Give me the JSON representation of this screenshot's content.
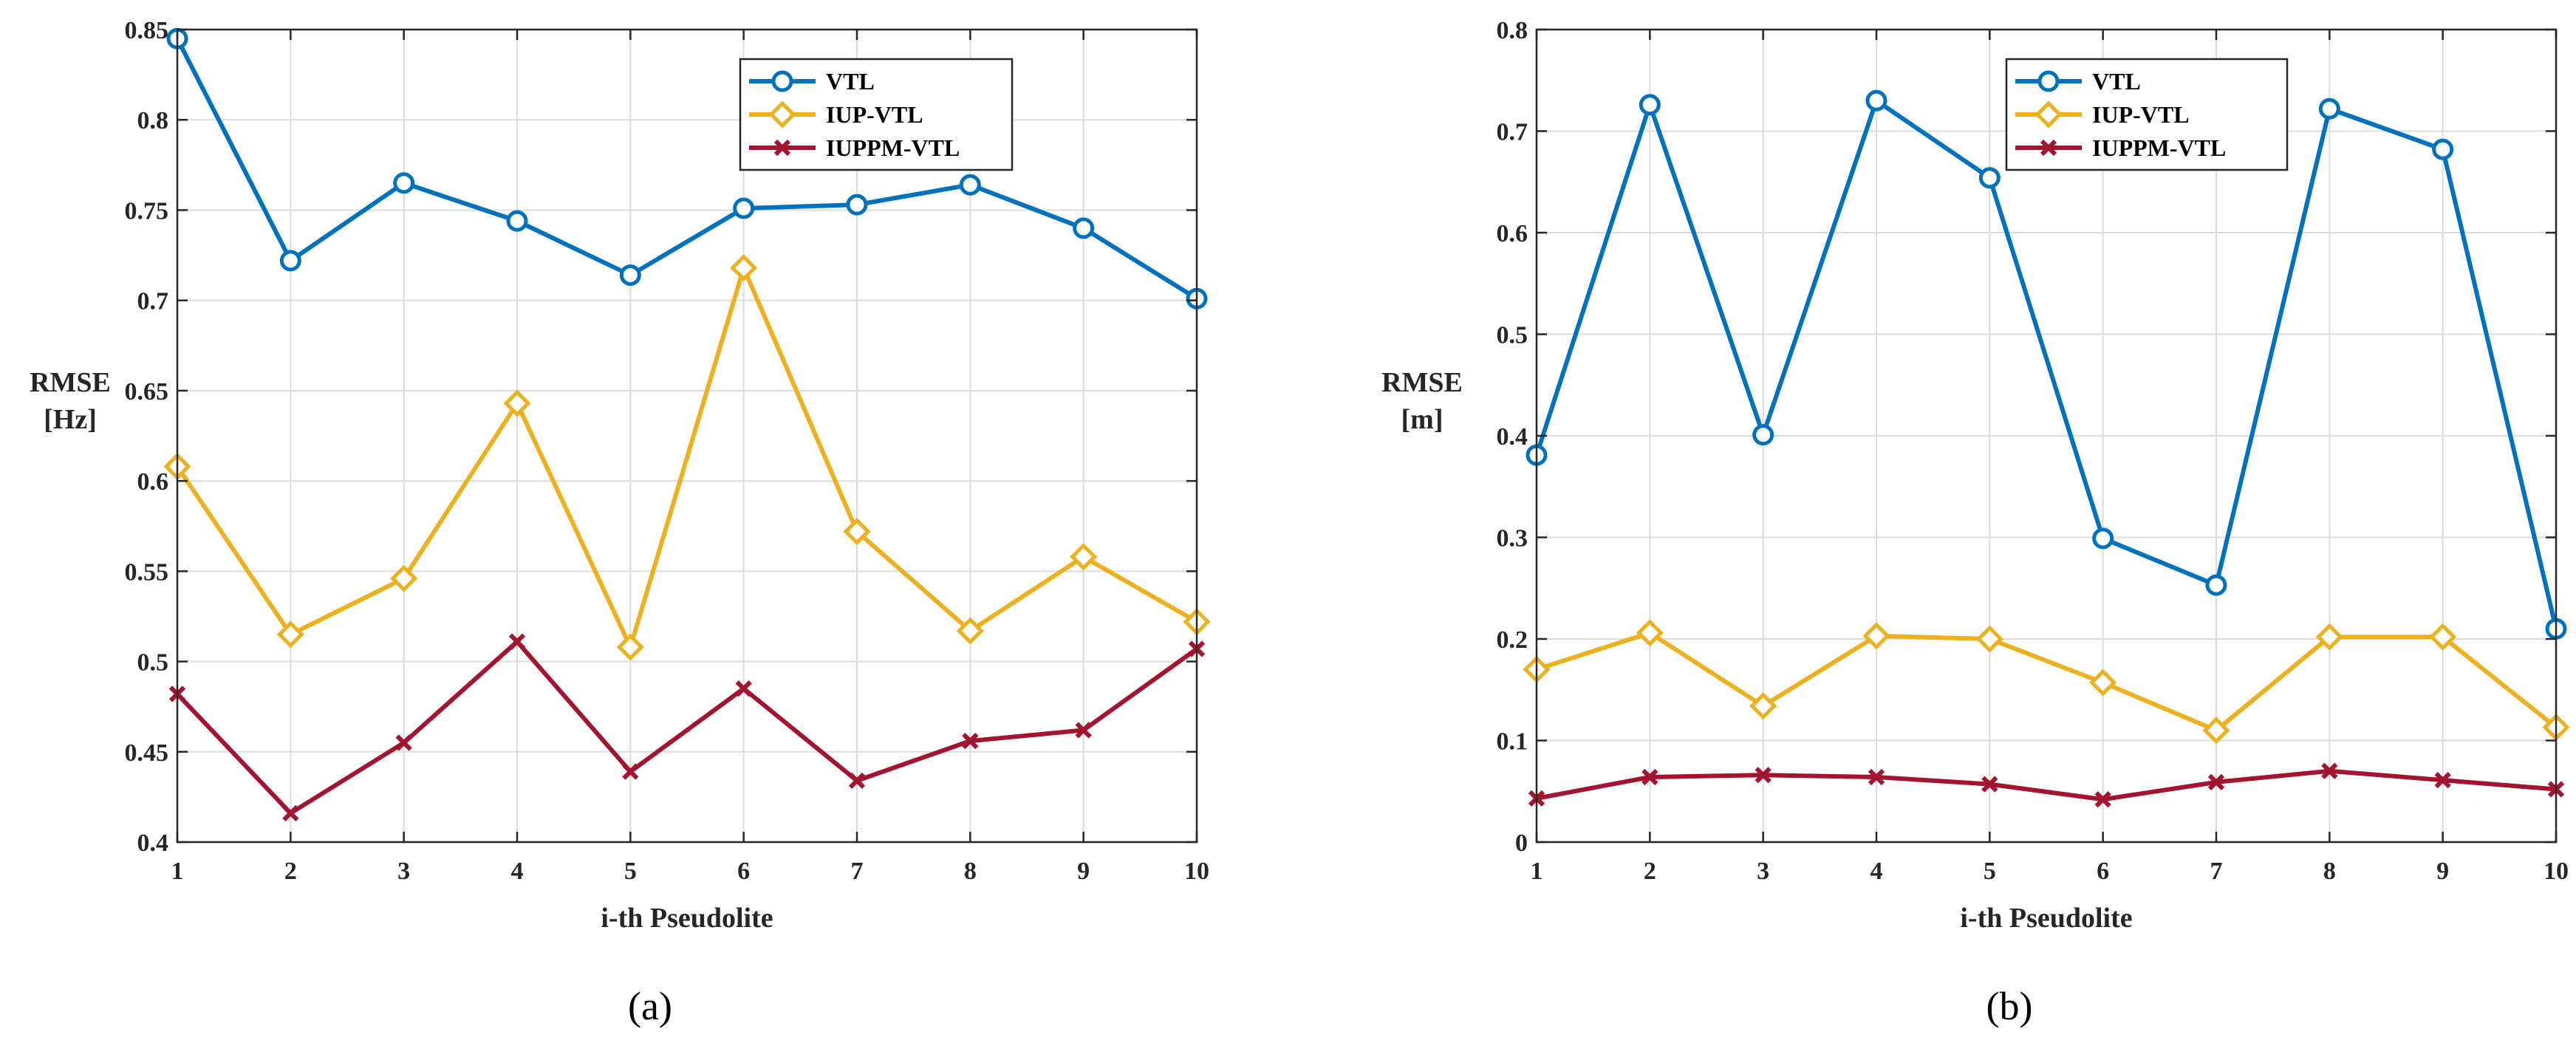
{
  "figure": {
    "panels": [
      {
        "caption": "(a)"
      },
      {
        "caption": "(b)"
      }
    ]
  },
  "colors": {
    "VTL": "#0072BD",
    "IUP-VTL": "#EDB120",
    "IUPPM-VTL": "#A2142F",
    "grid": "#dcdcdc",
    "axis": "#262626"
  },
  "chart_data": [
    {
      "type": "line",
      "title": "",
      "xlabel": "i-th Pseudolite",
      "ylabel_lines": [
        "RMSE",
        "[Hz]"
      ],
      "x": [
        1,
        2,
        3,
        4,
        5,
        6,
        7,
        8,
        9,
        10
      ],
      "xticks": [
        1,
        2,
        3,
        4,
        5,
        6,
        7,
        8,
        9,
        10
      ],
      "xlim": [
        1,
        10
      ],
      "ylim": [
        0.4,
        0.85
      ],
      "yticks": [
        0.4,
        0.45,
        0.5,
        0.55,
        0.6,
        0.65,
        0.7,
        0.75,
        0.8,
        0.85
      ],
      "ytick_labels": [
        "0.4",
        "0.45",
        "0.5",
        "0.55",
        "0.6",
        "0.65",
        "0.7",
        "0.75",
        "0.8",
        "0.85"
      ],
      "grid": true,
      "legend_position": "top-right",
      "series": [
        {
          "name": "VTL",
          "marker": "circle",
          "values": [
            0.845,
            0.722,
            0.765,
            0.744,
            0.714,
            0.751,
            0.753,
            0.764,
            0.74,
            0.701
          ]
        },
        {
          "name": "IUP-VTL",
          "marker": "diamond",
          "values": [
            0.608,
            0.515,
            0.546,
            0.643,
            0.508,
            0.718,
            0.572,
            0.517,
            0.558,
            0.522
          ]
        },
        {
          "name": "IUPPM-VTL",
          "marker": "x",
          "values": [
            0.482,
            0.416,
            0.455,
            0.511,
            0.439,
            0.485,
            0.434,
            0.456,
            0.462,
            0.507
          ]
        }
      ]
    },
    {
      "type": "line",
      "title": "",
      "xlabel": "i-th Pseudolite",
      "ylabel_lines": [
        "RMSE",
        "[m]"
      ],
      "x": [
        1,
        2,
        3,
        4,
        5,
        6,
        7,
        8,
        9,
        10
      ],
      "xticks": [
        1,
        2,
        3,
        4,
        5,
        6,
        7,
        8,
        9,
        10
      ],
      "xlim": [
        1,
        10
      ],
      "ylim": [
        0,
        0.8
      ],
      "yticks": [
        0,
        0.1,
        0.2,
        0.3,
        0.4,
        0.5,
        0.6,
        0.7,
        0.8
      ],
      "ytick_labels": [
        "0",
        "0.1",
        "0.2",
        "0.3",
        "0.4",
        "0.5",
        "0.6",
        "0.7",
        "0.8"
      ],
      "grid": true,
      "legend_position": "top-right",
      "series": [
        {
          "name": "VTL",
          "marker": "circle",
          "values": [
            0.381,
            0.726,
            0.401,
            0.73,
            0.654,
            0.299,
            0.253,
            0.722,
            0.682,
            0.21
          ]
        },
        {
          "name": "IUP-VTL",
          "marker": "diamond",
          "values": [
            0.17,
            0.206,
            0.134,
            0.203,
            0.2,
            0.157,
            0.11,
            0.202,
            0.202,
            0.113
          ]
        },
        {
          "name": "IUPPM-VTL",
          "marker": "x",
          "values": [
            0.043,
            0.064,
            0.066,
            0.064,
            0.057,
            0.042,
            0.059,
            0.07,
            0.061,
            0.052
          ]
        }
      ]
    }
  ]
}
